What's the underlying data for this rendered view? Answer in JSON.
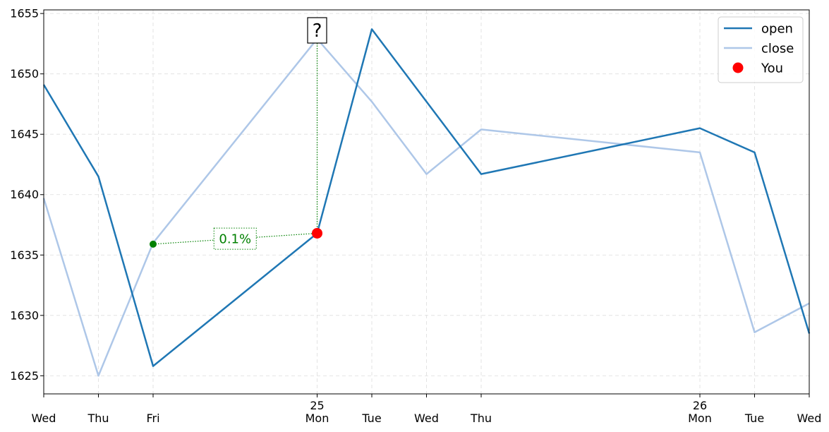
{
  "chart_data": {
    "type": "line",
    "x_labels": [
      {
        "day": "Wed",
        "date": ""
      },
      {
        "day": "Thu",
        "date": ""
      },
      {
        "day": "Fri",
        "date": ""
      },
      {
        "day": "Mon",
        "date": "25"
      },
      {
        "day": "Tue",
        "date": ""
      },
      {
        "day": "Wed",
        "date": ""
      },
      {
        "day": "Thu",
        "date": ""
      },
      {
        "day": "Mon",
        "date": "26"
      },
      {
        "day": "Tue",
        "date": ""
      },
      {
        "day": "Wed",
        "date": ""
      }
    ],
    "x_positions": [
      0,
      1,
      2,
      5,
      6,
      7,
      8,
      12,
      13,
      14
    ],
    "xlim": [
      0,
      14
    ],
    "ylim": [
      1623.5,
      1655.3
    ],
    "yticks": [
      1625,
      1630,
      1635,
      1640,
      1645,
      1650,
      1655
    ],
    "grid": true,
    "legend": "top-right",
    "series": [
      {
        "name": "open",
        "color": "#1f77b4",
        "values": [
          1649.1,
          1641.5,
          1625.8,
          1636.8,
          1653.7,
          1647.7,
          1641.7,
          1645.5,
          1643.5,
          1628.5
        ]
      },
      {
        "name": "close",
        "color": "#aec7e8",
        "values": [
          1639.7,
          1625.0,
          1636.0,
          1652.9,
          1647.7,
          1641.7,
          1645.4,
          1643.5,
          1628.6,
          1631.0
        ]
      }
    ],
    "you_point": {
      "label": "You",
      "x": 5,
      "y": 1636.8,
      "color": "#ff0000"
    },
    "reference_point": {
      "x": 2,
      "y": 1635.9,
      "color": "#008000"
    },
    "annotation_pct": "0.1%",
    "question_mark": "?"
  }
}
